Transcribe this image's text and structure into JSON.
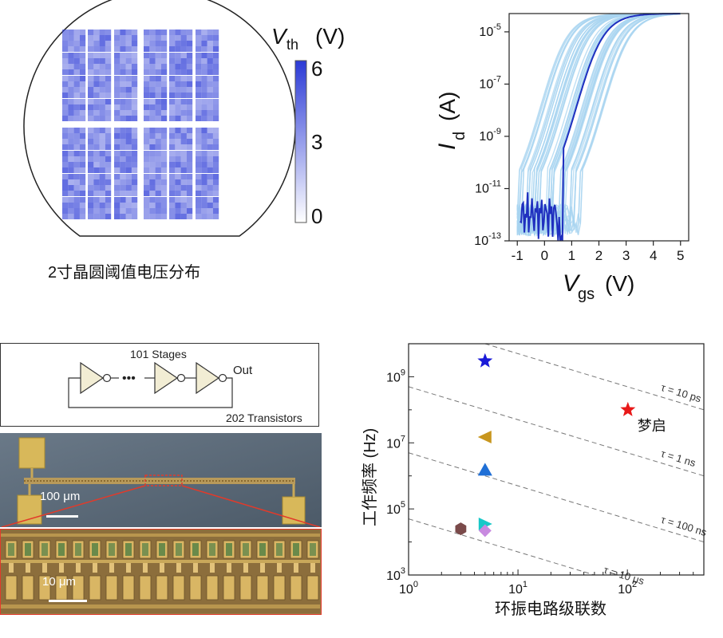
{
  "wafer": {
    "caption": "2寸晶圆阈值电压分布",
    "colorbar": {
      "title_main": "V",
      "title_sub": "th",
      "title_unit": "(V)",
      "ticks": [
        "6",
        "3",
        "0"
      ],
      "color_low": "#ffffff",
      "color_high": "#2b3ad6"
    }
  },
  "iv_chart": {
    "type": "line",
    "xlabel_main": "V",
    "xlabel_sub": "gs",
    "xlabel_unit": "(V)",
    "ylabel_main": "I",
    "ylabel_sub": "d",
    "ylabel_unit": "(A)",
    "xticks": [
      "-1",
      "0",
      "1",
      "2",
      "3",
      "4",
      "5"
    ],
    "yticks": [
      {
        "base": "10",
        "exp": "-5"
      },
      {
        "base": "10",
        "exp": "-7"
      },
      {
        "base": "10",
        "exp": "-9"
      },
      {
        "base": "10",
        "exp": "-11"
      },
      {
        "base": "10",
        "exp": "-13"
      }
    ],
    "xlim": [
      -1.3,
      5.3
    ],
    "ylim_log10": [
      -13,
      -4.3
    ],
    "band_color": "#a8d4f0",
    "curve_color": "#1f2fbf"
  },
  "circuit": {
    "stages_label": "101 Stages",
    "out_label": "Out",
    "transistors_label": "202 Transistors",
    "dots": "•••"
  },
  "micrograph": {
    "scale_top": "100 μm",
    "scale_bottom": "10 μm",
    "highlight_color": "#e23a2a"
  },
  "chart_data": {
    "type": "scatter",
    "xlabel": "环振电路级联数",
    "ylabel": "工作频率 (Hz)",
    "xscale": "log",
    "yscale": "log",
    "xlim": [
      1,
      500
    ],
    "ylim": [
      1000,
      10000000000
    ],
    "xticks": [
      {
        "base": "10",
        "exp": "0"
      },
      {
        "base": "10",
        "exp": "1"
      },
      {
        "base": "10",
        "exp": "2"
      }
    ],
    "yticks": [
      {
        "base": "10",
        "exp": "3"
      },
      {
        "base": "10",
        "exp": "5"
      },
      {
        "base": "10",
        "exp": "7"
      },
      {
        "base": "10",
        "exp": "9"
      }
    ],
    "points": [
      {
        "x": 5,
        "y": 3000000000,
        "marker": "star",
        "color": "#1a1ad8"
      },
      {
        "x": 101,
        "y": 100000000,
        "marker": "star",
        "color": "#e81818",
        "label": "梦启"
      },
      {
        "x": 5,
        "y": 15000000,
        "marker": "triangle-left",
        "color": "#c8961e"
      },
      {
        "x": 5,
        "y": 1500000,
        "marker": "triangle-up",
        "color": "#1f6fd6"
      },
      {
        "x": 5,
        "y": 35000,
        "marker": "triangle-right",
        "color": "#18c8c8"
      },
      {
        "x": 5,
        "y": 22000,
        "marker": "diamond",
        "color": "#c88ae0"
      },
      {
        "x": 3,
        "y": 25000,
        "marker": "hexagon",
        "color": "#7a4a4a"
      }
    ],
    "reference_lines": [
      {
        "label": "τ = 10 ps",
        "tau_s": 1e-11
      },
      {
        "label": "τ = 1 ns",
        "tau_s": 1e-09
      },
      {
        "label": "τ = 100 ns",
        "tau_s": 1e-07
      },
      {
        "label": "τ = 10 μs",
        "tau_s": 1e-05
      }
    ]
  }
}
